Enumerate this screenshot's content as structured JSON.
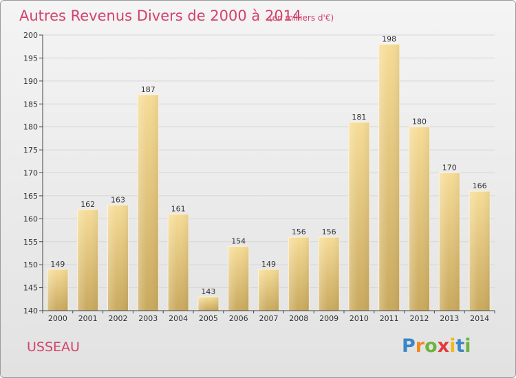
{
  "chart_data": {
    "type": "bar",
    "title": "Autres Revenus Divers de 2000 à 2014",
    "subtitle": "(en milliers d'€)",
    "categories": [
      "2000",
      "2001",
      "2002",
      "2003",
      "2004",
      "2005",
      "2006",
      "2007",
      "2008",
      "2009",
      "2010",
      "2011",
      "2012",
      "2013",
      "2014"
    ],
    "values": [
      149,
      162,
      163,
      187,
      161,
      143,
      154,
      149,
      156,
      156,
      181,
      198,
      180,
      170,
      166
    ],
    "ylim": [
      140,
      200
    ],
    "yticks": [
      140,
      145,
      150,
      155,
      160,
      165,
      170,
      175,
      180,
      185,
      190,
      195,
      200
    ],
    "grid": true,
    "bar_color": "#e8c878",
    "title_color": "#d2426b"
  },
  "place": "USSEAU",
  "logo": {
    "letters": [
      "P",
      "r",
      "o",
      "x",
      "i",
      "t",
      "i"
    ],
    "colors": [
      "#3a86c8",
      "#f08a1c",
      "#6cb33f",
      "#e23b3b",
      "#f0b81c",
      "#3a86c8",
      "#6cb33f"
    ]
  }
}
